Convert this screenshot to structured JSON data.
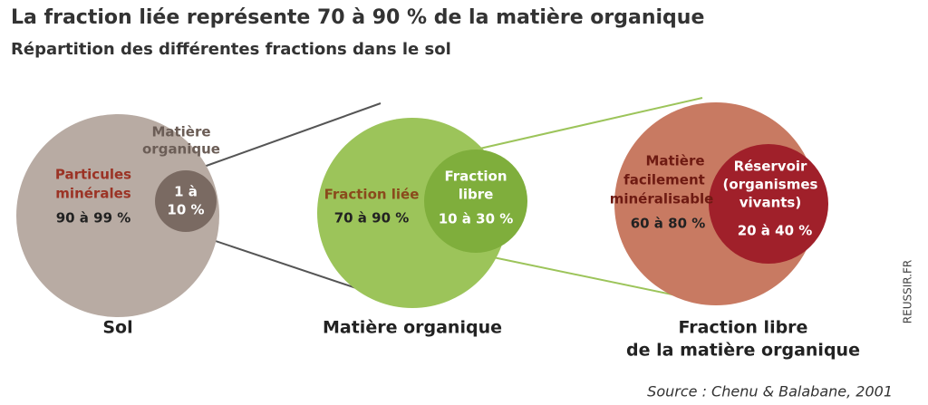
{
  "header": {
    "title": "La fraction liée représente 70 à 90 % de la matière organique",
    "subtitle": "Répartition des différentes fractions dans le sol"
  },
  "circles": [
    {
      "caption": [
        "Sol"
      ],
      "outer_label": [
        "Particules",
        "minérales"
      ],
      "outer_value": "90 à 99 %",
      "inner_label": [
        "Matière",
        "organique"
      ],
      "inner_value": [
        "1 à",
        "10 %"
      ]
    },
    {
      "caption": [
        "Matière organique"
      ],
      "outer_label": [
        "Fraction liée"
      ],
      "outer_value": "70 à 90 %",
      "inner_label": [
        "Fraction",
        "libre"
      ],
      "inner_value": [
        "10 à 30 %"
      ]
    },
    {
      "caption": [
        "Fraction libre",
        "de la matière organique"
      ],
      "outer_label": [
        "Matière",
        "facilement",
        "minéralisable"
      ],
      "outer_value": "60 à 80 %",
      "inner_label": [
        "Réservoir",
        "(organismes",
        "vivants)"
      ],
      "inner_value": [
        "20 à 40 %"
      ]
    }
  ],
  "source": "Source : Chenu & Balabane, 2001",
  "credit": "REUSSIR.FR"
}
